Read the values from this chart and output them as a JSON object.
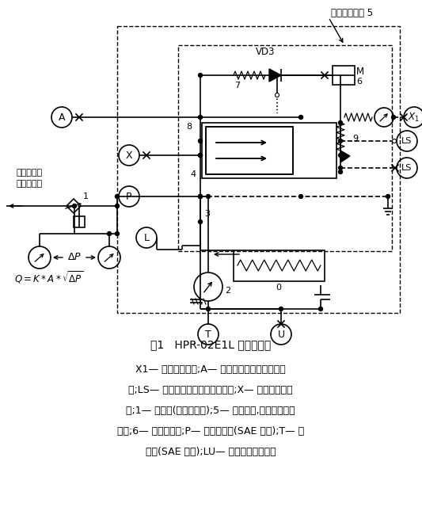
{
  "title": "图1   HPR-02E1L 液压原理图",
  "caption_line1": "X1— 应急控制油口;A— 比例减压阀输出压力测量",
  "caption_line2": "口;LS— 负载压力引入油口和测量口;X— 变量压力测量",
  "caption_line3": "口;1— 调速阀(负荷传感阀);5— 外部管路,引入负载压力",
  "caption_line4": "信号;6— 比例电磁铁;P— 高压油出口(SAE 标准);T— 吸",
  "caption_line5": "油口(SAE 标准);LU— 壳体注油／排气口",
  "annotation_top": "负荷传感压力 5",
  "label_vd3": "VD3",
  "label_M": "M",
  "bg_color": "#ffffff",
  "line_color": "#000000",
  "dashed_color": "#000000"
}
